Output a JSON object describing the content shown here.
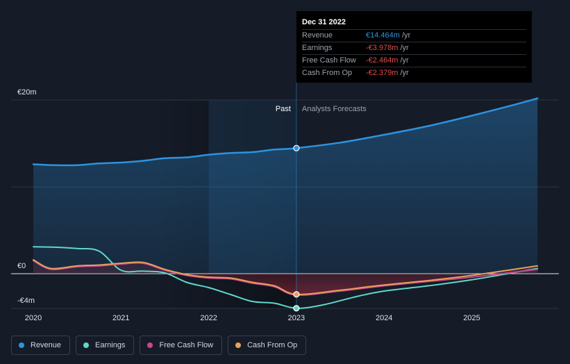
{
  "chart_data": {
    "type": "line",
    "currency": "EUR",
    "y_labels": [
      "€20m",
      "€0",
      "-€4m"
    ],
    "ylim": [
      -4,
      20
    ],
    "x_ticks": [
      "2020",
      "2021",
      "2022",
      "2023",
      "2024",
      "2025"
    ],
    "past_label": "Past",
    "forecast_label": "Analysts Forecasts",
    "cursor_date": 2023,
    "series": [
      {
        "name": "Revenue",
        "color": "#2d93e0",
        "points": [
          [
            2020.0,
            12.6
          ],
          [
            2020.25,
            12.5
          ],
          [
            2020.5,
            12.5
          ],
          [
            2020.75,
            12.7
          ],
          [
            2021.0,
            12.8
          ],
          [
            2021.25,
            13.0
          ],
          [
            2021.5,
            13.3
          ],
          [
            2021.75,
            13.4
          ],
          [
            2022.0,
            13.7
          ],
          [
            2022.25,
            13.9
          ],
          [
            2022.5,
            14.0
          ],
          [
            2022.75,
            14.3
          ],
          [
            2023.0,
            14.464
          ]
        ],
        "forecast": [
          [
            2023.0,
            14.464
          ],
          [
            2023.5,
            15.1
          ],
          [
            2024.0,
            16.0
          ],
          [
            2024.5,
            17.0
          ],
          [
            2025.0,
            18.2
          ],
          [
            2025.5,
            19.5
          ],
          [
            2025.75,
            20.2
          ]
        ]
      },
      {
        "name": "Earnings",
        "color": "#5fd8c9",
        "points": [
          [
            2020.0,
            3.1
          ],
          [
            2020.25,
            3.05
          ],
          [
            2020.5,
            2.9
          ],
          [
            2020.75,
            2.6
          ],
          [
            2021.0,
            0.4
          ],
          [
            2021.25,
            0.3
          ],
          [
            2021.5,
            0.1
          ],
          [
            2021.75,
            -1.0
          ],
          [
            2022.0,
            -1.6
          ],
          [
            2022.25,
            -2.4
          ],
          [
            2022.5,
            -3.2
          ],
          [
            2022.75,
            -3.4
          ],
          [
            2023.0,
            -3.978
          ]
        ],
        "forecast": [
          [
            2023.0,
            -3.978
          ],
          [
            2023.3,
            -3.6
          ],
          [
            2023.7,
            -2.6
          ],
          [
            2024.0,
            -2.0
          ],
          [
            2024.5,
            -1.4
          ],
          [
            2025.0,
            -0.7
          ],
          [
            2025.75,
            0.6
          ]
        ]
      },
      {
        "name": "Free Cash Flow",
        "color": "#c8468f",
        "points": [
          [
            2020.0,
            1.5
          ],
          [
            2020.2,
            0.5
          ],
          [
            2020.5,
            0.8
          ],
          [
            2020.75,
            0.9
          ],
          [
            2021.0,
            1.1
          ],
          [
            2021.25,
            1.2
          ],
          [
            2021.5,
            0.4
          ],
          [
            2021.75,
            -0.2
          ],
          [
            2022.0,
            -0.5
          ],
          [
            2022.25,
            -0.6
          ],
          [
            2022.5,
            -1.1
          ],
          [
            2022.75,
            -1.5
          ],
          [
            2023.0,
            -2.464
          ]
        ],
        "forecast": [
          [
            2023.0,
            -2.464
          ],
          [
            2023.5,
            -2.0
          ],
          [
            2024.0,
            -1.4
          ],
          [
            2024.5,
            -0.9
          ],
          [
            2025.0,
            -0.4
          ],
          [
            2025.75,
            0.5
          ]
        ]
      },
      {
        "name": "Cash From Op",
        "color": "#e8a05a",
        "points": [
          [
            2020.0,
            1.6
          ],
          [
            2020.2,
            0.6
          ],
          [
            2020.5,
            0.9
          ],
          [
            2020.75,
            1.0
          ],
          [
            2021.0,
            1.2
          ],
          [
            2021.25,
            1.3
          ],
          [
            2021.5,
            0.5
          ],
          [
            2021.75,
            -0.1
          ],
          [
            2022.0,
            -0.4
          ],
          [
            2022.25,
            -0.5
          ],
          [
            2022.5,
            -1.0
          ],
          [
            2022.75,
            -1.4
          ],
          [
            2023.0,
            -2.379
          ]
        ],
        "forecast": [
          [
            2023.0,
            -2.379
          ],
          [
            2023.5,
            -1.9
          ],
          [
            2024.0,
            -1.3
          ],
          [
            2024.5,
            -0.8
          ],
          [
            2025.0,
            -0.2
          ],
          [
            2025.75,
            0.9
          ]
        ]
      }
    ]
  },
  "tooltip": {
    "date": "Dec 31 2022",
    "rows": [
      {
        "label": "Revenue",
        "value": "€14.464m",
        "unit": "/yr",
        "color": "#2d93e0"
      },
      {
        "label": "Earnings",
        "value": "-€3.978m",
        "unit": "/yr",
        "color": "#e64b4b"
      },
      {
        "label": "Free Cash Flow",
        "value": "-€2.464m",
        "unit": "/yr",
        "color": "#e64b4b"
      },
      {
        "label": "Cash From Op",
        "value": "-€2.379m",
        "unit": "/yr",
        "color": "#e64b4b"
      }
    ]
  },
  "legend": [
    {
      "label": "Revenue",
      "color": "#2d93e0"
    },
    {
      "label": "Earnings",
      "color": "#5fd8c9"
    },
    {
      "label": "Free Cash Flow",
      "color": "#c8468f"
    },
    {
      "label": "Cash From Op",
      "color": "#e8a05a"
    }
  ]
}
